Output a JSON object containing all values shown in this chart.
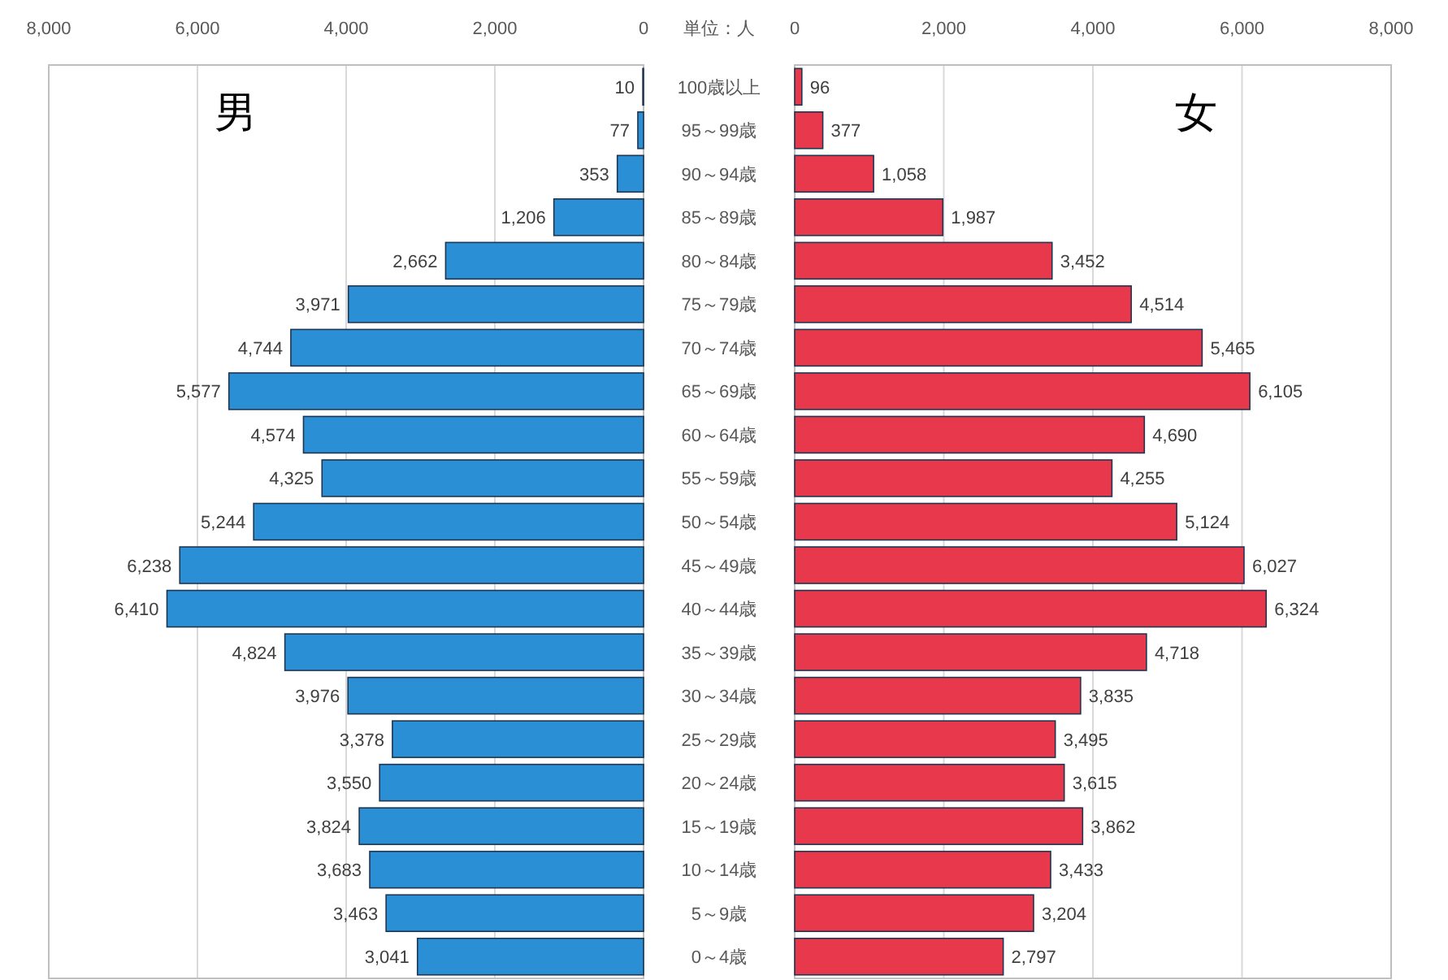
{
  "chart_data": [
    {
      "type": "bar",
      "orientation": "horizontal",
      "categories": [
        "100歳以上",
        "95～99歳",
        "90～94歳",
        "85～89歳",
        "80～84歳",
        "75～79歳",
        "70～74歳",
        "65～69歳",
        "60～64歳",
        "55～59歳",
        "50～54歳",
        "45～49歳",
        "40～44歳",
        "35～39歳",
        "30～34歳",
        "25～29歳",
        "20～24歳",
        "15～19歳",
        "10～14歳",
        "5～9歳",
        "0～4歳"
      ],
      "series": [
        {
          "name": "男",
          "color": "#2a8fd4",
          "values": [
            10,
            77,
            353,
            1206,
            2662,
            3971,
            4744,
            5577,
            4574,
            4325,
            5244,
            6238,
            6410,
            4824,
            3976,
            3378,
            3550,
            3824,
            3683,
            3463,
            3041
          ],
          "value_labels": [
            "10",
            "77",
            "353",
            "1,206",
            "2,662",
            "3,971",
            "4,744",
            "5,577",
            "4,574",
            "4,325",
            "5,244",
            "6,238",
            "6,410",
            "4,824",
            "3,976",
            "3,378",
            "3,550",
            "3,824",
            "3,683",
            "3,463",
            "3,041"
          ]
        }
      ],
      "xlim": [
        8000,
        0
      ],
      "xticks": [
        {
          "value": 8000,
          "label": "8,000"
        },
        {
          "value": 6000,
          "label": "6,000"
        },
        {
          "value": 4000,
          "label": "4,000"
        },
        {
          "value": 2000,
          "label": "2,000"
        },
        0
      ],
      "grid": "x",
      "annotations": [
        "単位：人"
      ]
    },
    {
      "type": "bar",
      "orientation": "horizontal",
      "series": [
        {
          "name": "女",
          "color": "#e8394c",
          "values": [
            96,
            377,
            1058,
            1987,
            3452,
            4514,
            5465,
            6105,
            4690,
            4255,
            5124,
            6027,
            6324,
            4718,
            3835,
            3495,
            3615,
            3862,
            3433,
            3204,
            2797
          ],
          "value_labels": [
            "96",
            "377",
            "1,058",
            "1,987",
            "3,452",
            "4,514",
            "5,465",
            "6,105",
            "4,690",
            "4,255",
            "5,124",
            "6,027",
            "6,324",
            "4,718",
            "3,835",
            "3,495",
            "3,615",
            "3,862",
            "3,433",
            "3,204",
            "2,797"
          ]
        }
      ],
      "xlim": [
        0,
        8000
      ],
      "xticks": [
        0,
        {
          "value": 2000,
          "label": "2,000"
        },
        {
          "value": 4000,
          "label": "4,000"
        },
        {
          "value": 6000,
          "label": "6,000"
        },
        {
          "value": 8000,
          "label": "8,000"
        }
      ],
      "grid": "x"
    }
  ]
}
